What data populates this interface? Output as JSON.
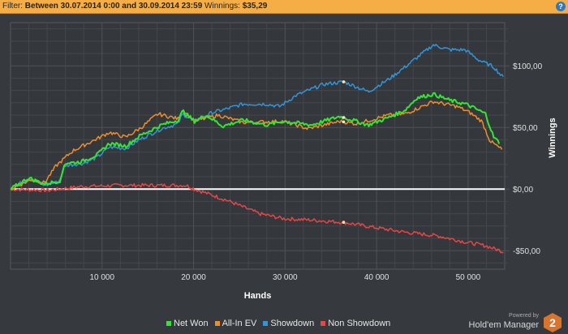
{
  "filter": {
    "prefix": "Filter:",
    "range": "Between 30.07.2014 0:00 and 30.09.2014 23:59",
    "winnings_label": "Winnings:",
    "winnings_value": "$35,29",
    "help_icon": "?"
  },
  "branding": {
    "powered_by": "Powered by",
    "product": "Hold'em Manager",
    "logo_number": "2"
  },
  "chart_data": {
    "type": "line",
    "xlabel": "Hands",
    "ylabel": "Winnings",
    "xlim": [
      0,
      54000
    ],
    "ylim": [
      -65,
      135
    ],
    "grid": true,
    "legend_position": "bottom",
    "x_ticks": [
      {
        "value": 10000,
        "label": "10 000"
      },
      {
        "value": 20000,
        "label": "20 000"
      },
      {
        "value": 30000,
        "label": "30 000"
      },
      {
        "value": 40000,
        "label": "40 000"
      },
      {
        "value": 50000,
        "label": "50 000"
      }
    ],
    "y_ticks": [
      {
        "value": 100,
        "label": "$100,00"
      },
      {
        "value": 50,
        "label": "$50,00"
      },
      {
        "value": 0,
        "label": "$0,00"
      },
      {
        "value": -50,
        "label": "-$50,00"
      }
    ],
    "marker_x": 36400,
    "series": [
      {
        "name": "Non Showdown",
        "color": "#e84545",
        "points": [
          [
            0,
            0
          ],
          [
            4200,
            -1
          ],
          [
            7700,
            2
          ],
          [
            12100,
            3
          ],
          [
            19200,
            3
          ],
          [
            20100,
            0
          ],
          [
            23600,
            -9
          ],
          [
            27200,
            -20
          ],
          [
            29800,
            -24
          ],
          [
            32500,
            -25
          ],
          [
            36400,
            -27
          ],
          [
            39600,
            -31
          ],
          [
            43100,
            -35
          ],
          [
            46700,
            -38
          ],
          [
            49700,
            -43
          ],
          [
            51900,
            -46
          ],
          [
            53900,
            -51
          ]
        ]
      },
      {
        "name": "Showdown",
        "color": "#3195d8",
        "points": [
          [
            0,
            0
          ],
          [
            2000,
            9
          ],
          [
            3700,
            3
          ],
          [
            5300,
            6
          ],
          [
            5900,
            19
          ],
          [
            8000,
            21
          ],
          [
            9500,
            26
          ],
          [
            10800,
            34
          ],
          [
            12600,
            33
          ],
          [
            14300,
            41
          ],
          [
            16500,
            49
          ],
          [
            18300,
            53
          ],
          [
            18800,
            61
          ],
          [
            20100,
            55
          ],
          [
            22000,
            62
          ],
          [
            23600,
            65
          ],
          [
            25400,
            69
          ],
          [
            28000,
            69
          ],
          [
            29400,
            67
          ],
          [
            31200,
            76
          ],
          [
            34200,
            85
          ],
          [
            36400,
            87
          ],
          [
            37800,
            83
          ],
          [
            39100,
            79
          ],
          [
            41300,
            89
          ],
          [
            43100,
            99
          ],
          [
            46200,
            117
          ],
          [
            48000,
            113
          ],
          [
            49700,
            113
          ],
          [
            51100,
            105
          ],
          [
            52800,
            99
          ],
          [
            53900,
            90
          ]
        ]
      },
      {
        "name": "All-In EV",
        "color": "#f08c2a",
        "points": [
          [
            0,
            0
          ],
          [
            2400,
            8
          ],
          [
            3700,
            5
          ],
          [
            5000,
            19
          ],
          [
            6800,
            31
          ],
          [
            9500,
            41
          ],
          [
            10800,
            46
          ],
          [
            12600,
            42
          ],
          [
            14300,
            50
          ],
          [
            16100,
            61
          ],
          [
            18300,
            57
          ],
          [
            18800,
            65
          ],
          [
            20100,
            55
          ],
          [
            22700,
            60
          ],
          [
            25400,
            54
          ],
          [
            29800,
            55
          ],
          [
            32500,
            49
          ],
          [
            36000,
            55
          ],
          [
            37800,
            53
          ],
          [
            41300,
            60
          ],
          [
            43100,
            61
          ],
          [
            46200,
            71
          ],
          [
            48800,
            67
          ],
          [
            50200,
            62
          ],
          [
            51500,
            55
          ],
          [
            52400,
            39
          ],
          [
            53700,
            32
          ]
        ]
      },
      {
        "name": "Net Won",
        "color": "#33e633",
        "points": [
          [
            0,
            0
          ],
          [
            2000,
            9
          ],
          [
            3700,
            4
          ],
          [
            5500,
            7
          ],
          [
            5900,
            21
          ],
          [
            7700,
            22
          ],
          [
            9500,
            28
          ],
          [
            10800,
            37
          ],
          [
            12600,
            35
          ],
          [
            14300,
            44
          ],
          [
            16500,
            52
          ],
          [
            18300,
            56
          ],
          [
            18800,
            63
          ],
          [
            20100,
            55
          ],
          [
            21400,
            60
          ],
          [
            23200,
            51
          ],
          [
            25400,
            56
          ],
          [
            28000,
            52
          ],
          [
            29800,
            55
          ],
          [
            32900,
            52
          ],
          [
            34200,
            55
          ],
          [
            36000,
            59
          ],
          [
            37800,
            55
          ],
          [
            39100,
            52
          ],
          [
            41300,
            58
          ],
          [
            43100,
            64
          ],
          [
            44400,
            74
          ],
          [
            46200,
            77
          ],
          [
            48000,
            72
          ],
          [
            49700,
            69
          ],
          [
            50600,
            66
          ],
          [
            51900,
            61
          ],
          [
            52800,
            42
          ],
          [
            53500,
            37
          ]
        ]
      }
    ]
  }
}
